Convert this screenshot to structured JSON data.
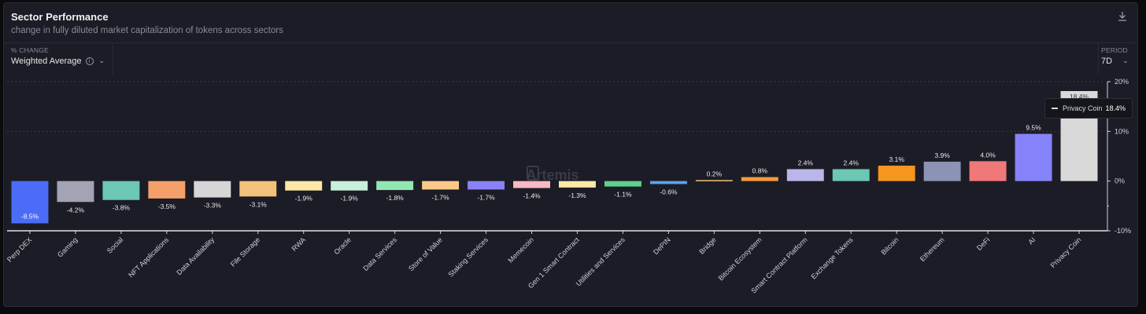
{
  "header": {
    "title": "Sector Performance",
    "subtitle": "change in fully diluted market capitalization of tokens across sectors"
  },
  "controls": {
    "metric_label": "% CHANGE",
    "metric_value": "Weighted Average",
    "period_label": "PERIOD",
    "period_value": "7D"
  },
  "icons": {
    "download": "download-icon",
    "info": "info-icon",
    "chevron": "chevron-down-icon"
  },
  "watermark": "Artemis",
  "tooltip": {
    "label": "Privacy Coin",
    "value": "18.4%"
  },
  "chart_data": {
    "type": "bar",
    "categories": [
      "Perp DEX",
      "Gaming",
      "Social",
      "NFT Applications",
      "Data Availability",
      "File Storage",
      "RWA",
      "Oracle",
      "Data Services",
      "Store of Value",
      "Staking Services",
      "Memecoin",
      "Gen 1 Smart Contract",
      "Utilities and Services",
      "DePIN",
      "Bridge",
      "Bitcoin Ecosystem",
      "Smart Contract Platform",
      "Exchange Tokens",
      "Bitcoin",
      "Ethereum",
      "DeFi",
      "AI",
      "Privacy Coin"
    ],
    "values": [
      -8.5,
      -4.2,
      -3.8,
      -3.5,
      -3.3,
      -3.1,
      -1.9,
      -1.9,
      -1.8,
      -1.7,
      -1.7,
      -1.4,
      -1.3,
      -1.1,
      -0.6,
      0.2,
      0.8,
      2.4,
      2.4,
      3.1,
      3.9,
      4.0,
      9.5,
      18.4
    ],
    "labels": [
      "-8.5%",
      "-4.2%",
      "-3.8%",
      "-3.5%",
      "-3.3%",
      "-3.1%",
      "-1.9%",
      "-1.9%",
      "-1.8%",
      "-1.7%",
      "-1.7%",
      "-1.4%",
      "-1.3%",
      "-1.1%",
      "-0.6%",
      "0.2%",
      "0.8%",
      "2.4%",
      "2.4%",
      "3.1%",
      "3.9%",
      "4.0%",
      "9.5%",
      "18.4%"
    ],
    "colors": [
      "#4a6cf7",
      "#a2a3b5",
      "#6cc7b3",
      "#f5a06a",
      "#d6d6d6",
      "#f2c27b",
      "#fde7a6",
      "#c6f0dc",
      "#92e6b2",
      "#fbc98a",
      "#8a82f4",
      "#f9b8c6",
      "#fde7a6",
      "#5fd08a",
      "#5ea2f0",
      "#f2c27b",
      "#f59a3a",
      "#b9b6ea",
      "#6cc7b3",
      "#f5961e",
      "#8c93b4",
      "#f07878",
      "#8682fa",
      "#d9d9d9"
    ],
    "ylim": [
      -10,
      20
    ],
    "yticks": [
      -10,
      0,
      10,
      20
    ],
    "ytick_labels": [
      "-10%",
      "0%",
      "10%",
      "20%"
    ],
    "xlabel": "",
    "ylabel": "",
    "grid": true
  }
}
